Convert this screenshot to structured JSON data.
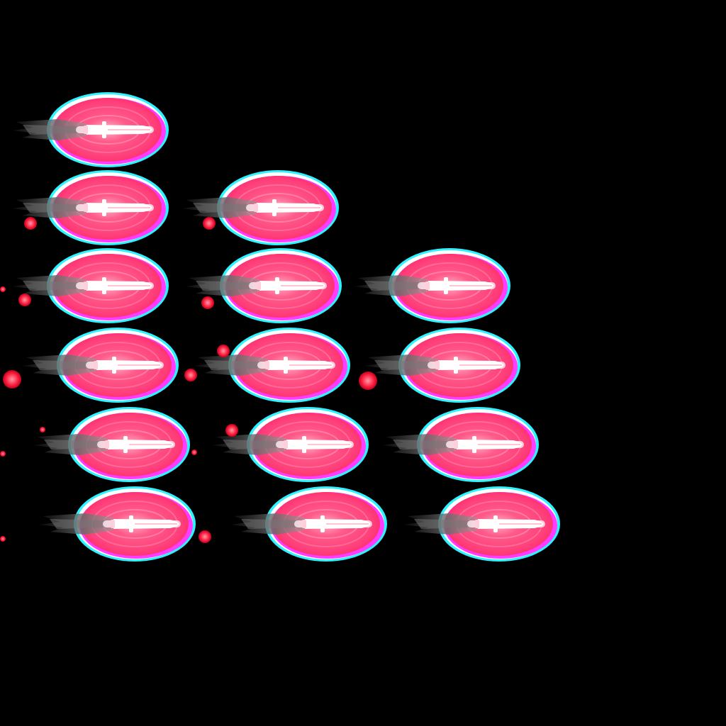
{
  "sprite_sheet": {
    "background": "#000000",
    "colors": {
      "glow_outer": "#2ef2ff",
      "glow_edge": "#ff3cff",
      "glow_body": "#ff3f7a",
      "glow_core": "#ff8aa8",
      "bullet": "#ffffff",
      "smoke": "#5a5a5a",
      "spark": "#ff2040"
    },
    "rows": [
      {
        "frames": 1
      },
      {
        "frames": 2
      },
      {
        "frames": 3
      },
      {
        "frames": 3
      },
      {
        "frames": 3
      },
      {
        "frames": 3
      }
    ],
    "sprite_icon": "glowing-bullet-icon"
  }
}
